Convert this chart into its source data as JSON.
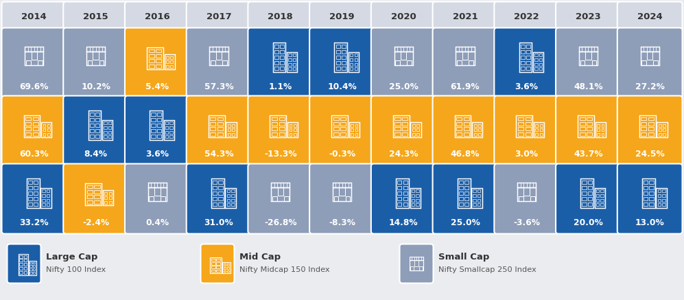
{
  "years": [
    "2014",
    "2015",
    "2016",
    "2017",
    "2018",
    "2019",
    "2020",
    "2021",
    "2022",
    "2023",
    "2024"
  ],
  "rows": [
    {
      "values": [
        "69.6%",
        "10.2%",
        "5.4%",
        "57.3%",
        "1.1%",
        "10.4%",
        "25.0%",
        "61.9%",
        "3.6%",
        "48.1%",
        "27.2%"
      ],
      "colors": [
        "gray",
        "gray",
        "orange",
        "gray",
        "blue",
        "blue",
        "gray",
        "gray",
        "blue",
        "gray",
        "gray"
      ]
    },
    {
      "values": [
        "60.3%",
        "8.4%",
        "3.6%",
        "54.3%",
        "-13.3%",
        "-0.3%",
        "24.3%",
        "46.8%",
        "3.0%",
        "43.7%",
        "24.5%"
      ],
      "colors": [
        "orange",
        "blue",
        "blue",
        "orange",
        "orange",
        "orange",
        "orange",
        "orange",
        "orange",
        "orange",
        "orange"
      ]
    },
    {
      "values": [
        "33.2%",
        "-2.4%",
        "0.4%",
        "31.0%",
        "-26.8%",
        "-8.3%",
        "14.8%",
        "25.0%",
        "-3.6%",
        "20.0%",
        "13.0%"
      ],
      "colors": [
        "blue",
        "orange",
        "gray",
        "blue",
        "gray",
        "gray",
        "blue",
        "blue",
        "gray",
        "blue",
        "blue"
      ]
    }
  ],
  "color_map": {
    "blue": "#1b5ea8",
    "orange": "#f5a61a",
    "gray": "#8e9db8"
  },
  "bg_color": "#eaecf0",
  "header_bg": "#d5d9e3",
  "text_color": "#333333",
  "legend": [
    {
      "label": "Large Cap",
      "sublabel": "Nifty 100 Index",
      "color": "blue",
      "icon": "large"
    },
    {
      "label": "Mid Cap",
      "sublabel": "Nifty Midcap 150 Index",
      "color": "orange",
      "icon": "mid"
    },
    {
      "label": "Small Cap",
      "sublabel": "Nifty Smallcap 250 Index",
      "color": "gray",
      "icon": "small"
    }
  ]
}
